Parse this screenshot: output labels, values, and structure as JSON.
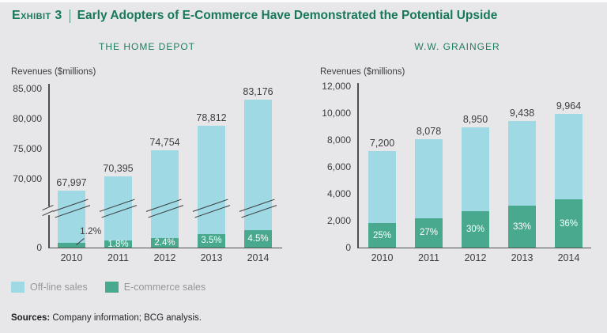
{
  "header": {
    "exhibit_label": "Exhibit 3",
    "separator": "|",
    "title": "Early Adopters of E-Commerce Have Demonstrated the Potential Upside"
  },
  "legend": {
    "position": "bottom-left",
    "items": [
      {
        "label": "Off-line sales",
        "color": "#9ed9e4"
      },
      {
        "label": "E-commerce sales",
        "color": "#49a98e"
      }
    ]
  },
  "sources": {
    "label": "Sources:",
    "text": "Company information; BCG analysis."
  },
  "colors": {
    "background": "#e7e7e9",
    "accent_green": "#17785a",
    "axis": "#4e4f53",
    "offline_bar": "#9ed9e4",
    "ecommerce_bar": "#49a98e"
  },
  "chart_data": [
    {
      "type": "bar",
      "stacked": true,
      "title": "THE HOME DEPOT",
      "ylabel": "Revenues ($millions)",
      "categories": [
        "2010",
        "2011",
        "2012",
        "2013",
        "2014"
      ],
      "totals": [
        67997,
        70395,
        74754,
        78812,
        83176
      ],
      "total_labels": [
        "67,997",
        "70,395",
        "74,754",
        "78,812",
        "83,176"
      ],
      "ecommerce_pct": [
        1.2,
        1.8,
        2.4,
        3.5,
        4.5
      ],
      "ecommerce_pct_labels": [
        "1.2%",
        "1.8%",
        "2.4%",
        "3.5%",
        "4.5%"
      ],
      "series": [
        {
          "name": "Off-line sales"
        },
        {
          "name": "E-commerce sales",
          "share_of_total_pct": [
            1.2,
            1.8,
            2.4,
            3.5,
            4.5
          ]
        }
      ],
      "y_ticks": [
        {
          "label": "85,000",
          "value": 85000
        },
        {
          "label": "80,000",
          "value": 80000
        },
        {
          "label": "75,000",
          "value": 75000
        },
        {
          "label": "70,000",
          "value": 70000
        },
        {
          "label": "0",
          "value": 0
        }
      ],
      "ylim": [
        0,
        85000
      ],
      "axis_break": true,
      "grid": false
    },
    {
      "type": "bar",
      "stacked": true,
      "title": "W.W. GRAINGER",
      "ylabel": "Revenues ($millions)",
      "categories": [
        "2010",
        "2011",
        "2012",
        "2013",
        "2014"
      ],
      "totals": [
        7200,
        8078,
        8950,
        9438,
        9964
      ],
      "total_labels": [
        "7,200",
        "8,078",
        "8,950",
        "9,438",
        "9,964"
      ],
      "ecommerce_pct": [
        25,
        27,
        30,
        33,
        36
      ],
      "ecommerce_pct_labels": [
        "25%",
        "27%",
        "30%",
        "33%",
        "36%"
      ],
      "series": [
        {
          "name": "Off-line sales"
        },
        {
          "name": "E-commerce sales",
          "share_of_total_pct": [
            25,
            27,
            30,
            33,
            36
          ]
        }
      ],
      "y_ticks": [
        {
          "label": "12,000",
          "value": 12000
        },
        {
          "label": "10,000",
          "value": 10000
        },
        {
          "label": "8,000",
          "value": 8000
        },
        {
          "label": "6,000",
          "value": 6000
        },
        {
          "label": "4,000",
          "value": 4000
        },
        {
          "label": "2,000",
          "value": 2000
        },
        {
          "label": "0",
          "value": 0
        }
      ],
      "ylim": [
        0,
        12000
      ],
      "axis_break": false,
      "grid": false
    }
  ]
}
